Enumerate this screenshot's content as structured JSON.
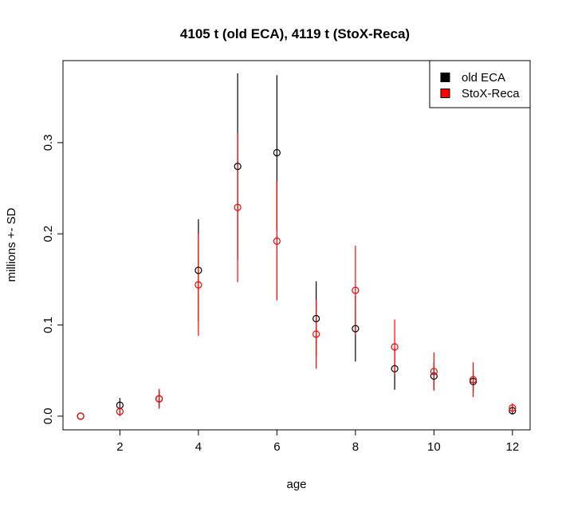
{
  "chart_data": {
    "type": "scatter",
    "title": "4105 t (old ECA), 4119 t (StoX-Reca)",
    "xlabel": "age",
    "ylabel": "millions +- SD",
    "xlim": [
      0.55,
      12.45
    ],
    "ylim": [
      -0.015,
      0.39
    ],
    "xticks": [
      2,
      4,
      6,
      8,
      10,
      12
    ],
    "yticks": [
      0.0,
      0.1,
      0.2,
      0.3
    ],
    "ytick_labels": [
      "0.0",
      "0.1",
      "0.2",
      "0.3"
    ],
    "grid": false,
    "legend_position": "top-right",
    "series": [
      {
        "name": "old ECA",
        "color": "#000000",
        "x": [
          1,
          2,
          3,
          4,
          5,
          6,
          7,
          8,
          9,
          10,
          11,
          12
        ],
        "y": [
          0.0,
          0.012,
          0.019,
          0.16,
          0.274,
          0.289,
          0.107,
          0.096,
          0.052,
          0.044,
          0.038,
          0.006
        ],
        "sd": [
          0.0,
          0.008,
          0.009,
          0.056,
          0.102,
          0.085,
          0.041,
          0.036,
          0.023,
          0.015,
          0.012,
          0.004
        ]
      },
      {
        "name": "StoX-Reca",
        "color": "#ff0000",
        "x": [
          1,
          2,
          3,
          4,
          5,
          6,
          7,
          8,
          9,
          10,
          11,
          12
        ],
        "y": [
          0.0,
          0.005,
          0.019,
          0.144,
          0.229,
          0.192,
          0.09,
          0.138,
          0.076,
          0.049,
          0.04,
          0.009
        ],
        "sd": [
          0.0,
          0.005,
          0.011,
          0.056,
          0.082,
          0.065,
          0.038,
          0.049,
          0.03,
          0.021,
          0.019,
          0.005
        ]
      }
    ]
  }
}
